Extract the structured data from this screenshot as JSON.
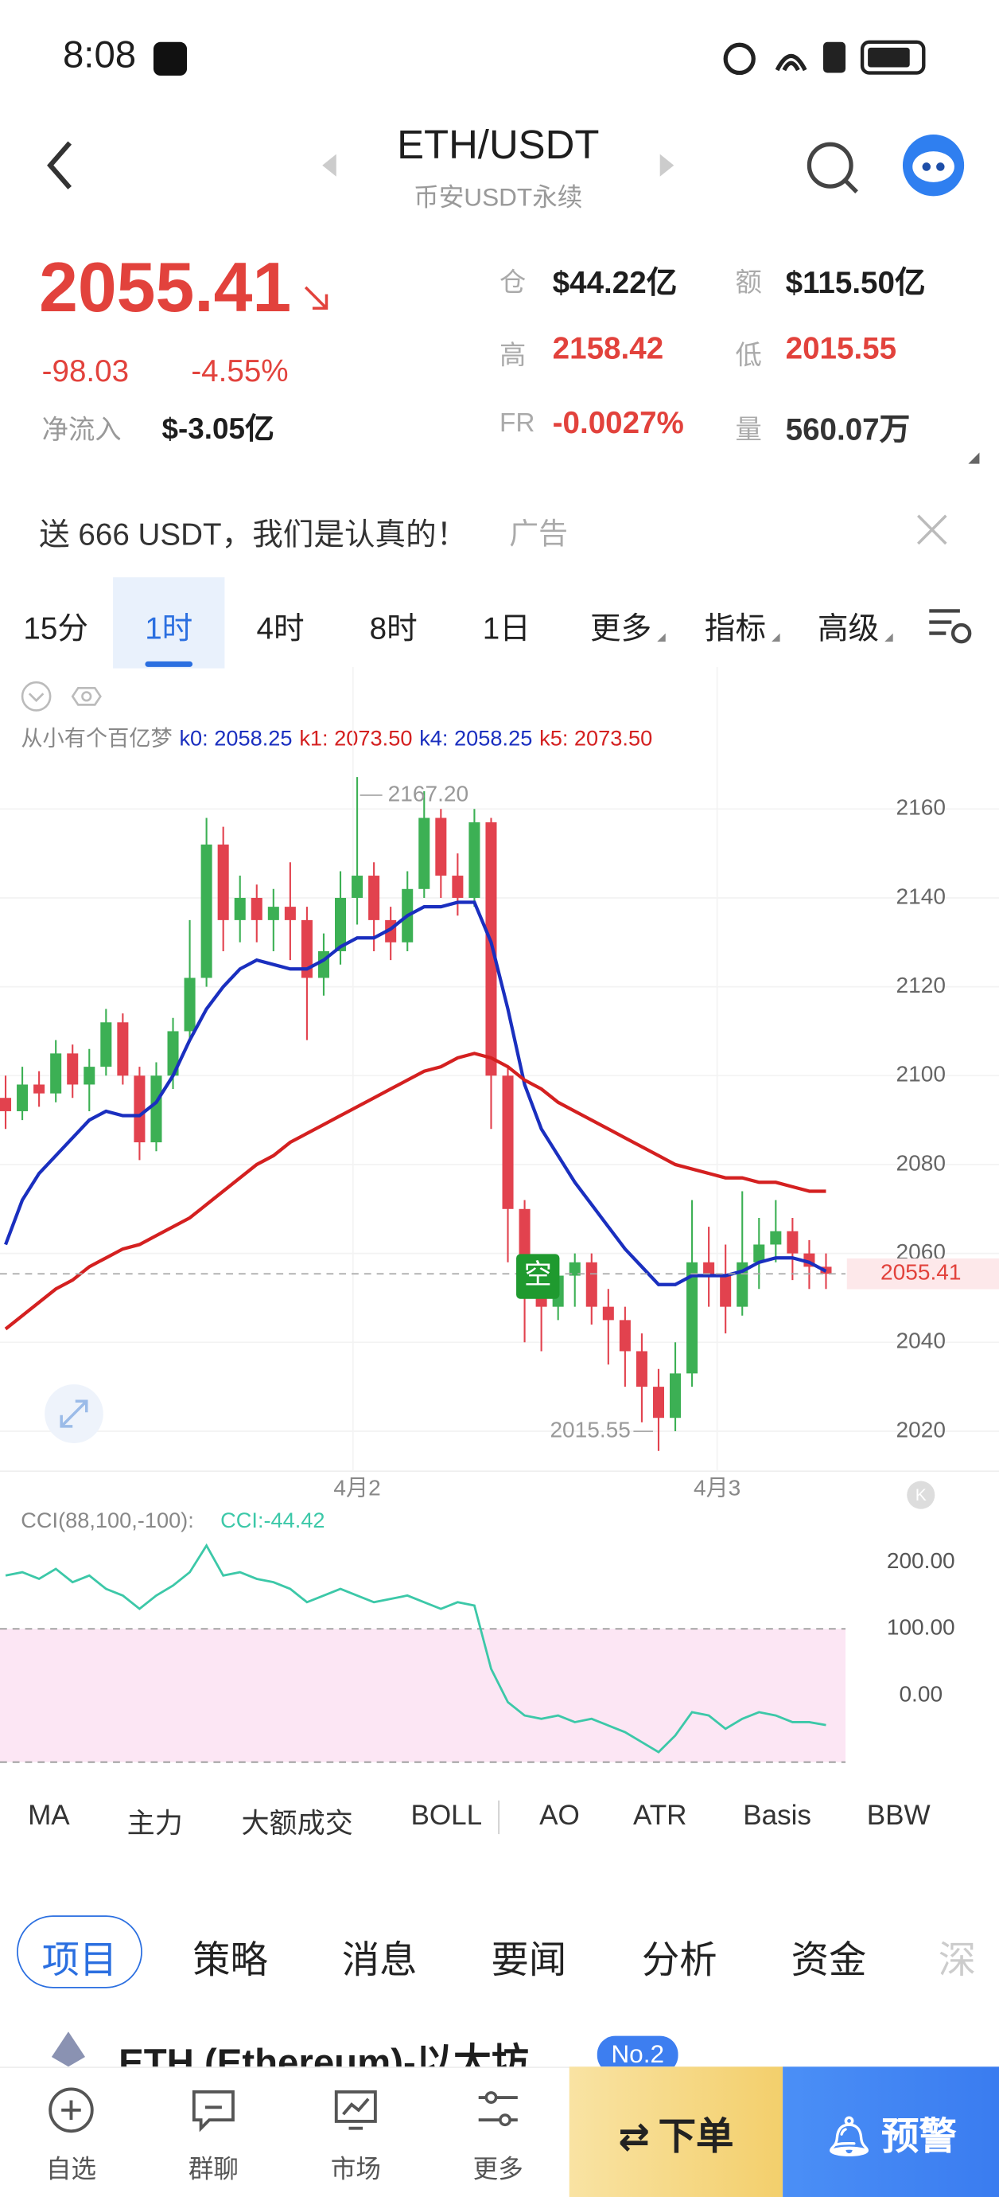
{
  "status": {
    "time": "8:08"
  },
  "header": {
    "title": "ETH/USDT",
    "subtitle": "币安USDT永续"
  },
  "ticker": {
    "price": "2055.41",
    "change": "-98.03",
    "change_pct": "-4.55%",
    "netflow_label": "净流入",
    "netflow": "$-3.05亿",
    "stats": [
      {
        "label": "仓",
        "value": "$44.22亿"
      },
      {
        "label": "额",
        "value": "$115.50亿"
      },
      {
        "label": "高",
        "value": "2158.42"
      },
      {
        "label": "低",
        "value": "2015.55"
      },
      {
        "label": "FR",
        "value": "-0.0027%"
      },
      {
        "label": "量",
        "value": "560.07万"
      }
    ]
  },
  "ad": {
    "text": "送 666 USDT，我们是认真的！",
    "tag": "广告"
  },
  "timeframes": [
    "15分",
    "1时",
    "4时",
    "8时",
    "1日",
    "更多",
    "指标",
    "高级"
  ],
  "indicator": {
    "name": "从小有个百亿梦",
    "legend": [
      {
        "text": "k0: 2058.25",
        "color": "#1a2fbf"
      },
      {
        "text": "k1: 2073.50",
        "color": "#d42020"
      },
      {
        "text": "k4: 2058.25",
        "color": "#1a2fbf"
      },
      {
        "text": "k5: 2073.50",
        "color": "#d42020"
      }
    ]
  },
  "chart_data": [
    {
      "type": "candlestick",
      "up_color": "#3cb054",
      "down_color": "#e2424e",
      "ylim": [
        2011,
        2168
      ],
      "yticks": [
        2020,
        2040,
        2060,
        2080,
        2100,
        2120,
        2140,
        2160
      ],
      "grid": true,
      "x_labels": [
        "4月2",
        "4月3"
      ],
      "high_label": "2167.20",
      "candles": [
        [
          2095,
          2100,
          2088,
          2092
        ],
        [
          2092,
          2102,
          2090,
          2098
        ],
        [
          2098,
          2101,
          2093,
          2096
        ],
        [
          2096,
          2108,
          2094,
          2105
        ],
        [
          2105,
          2107,
          2095,
          2098
        ],
        [
          2098,
          2106,
          2092,
          2102
        ],
        [
          2102,
          2115,
          2100,
          2112
        ],
        [
          2112,
          2114,
          2098,
          2100
        ],
        [
          2100,
          2102,
          2081,
          2085
        ],
        [
          2085,
          2103,
          2083,
          2100
        ],
        [
          2100,
          2113,
          2097,
          2110
        ],
        [
          2110,
          2135,
          2108,
          2122
        ],
        [
          2122,
          2158,
          2120,
          2152
        ],
        [
          2152,
          2156,
          2128,
          2135
        ],
        [
          2135,
          2145,
          2130,
          2140
        ],
        [
          2140,
          2143,
          2130,
          2135
        ],
        [
          2135,
          2142,
          2128,
          2138
        ],
        [
          2138,
          2148,
          2126,
          2135
        ],
        [
          2135,
          2138,
          2108,
          2122
        ],
        [
          2122,
          2132,
          2118,
          2128
        ],
        [
          2128,
          2146,
          2125,
          2140
        ],
        [
          2140,
          2167.2,
          2134,
          2145
        ],
        [
          2145,
          2148,
          2128,
          2135
        ],
        [
          2135,
          2138,
          2126,
          2130
        ],
        [
          2130,
          2146,
          2128,
          2142
        ],
        [
          2142,
          2164,
          2140,
          2158
        ],
        [
          2158,
          2160,
          2140,
          2145
        ],
        [
          2145,
          2150,
          2136,
          2140
        ],
        [
          2140,
          2160,
          2138,
          2157
        ],
        [
          2157,
          2158,
          2088,
          2100
        ],
        [
          2100,
          2102,
          2058,
          2070
        ],
        [
          2070,
          2072,
          2040,
          2055
        ],
        [
          2055,
          2058,
          2038,
          2048
        ],
        [
          2048,
          2058,
          2045,
          2055
        ],
        [
          2055,
          2060,
          2048,
          2058
        ],
        [
          2058,
          2060,
          2044,
          2048
        ],
        [
          2048,
          2052,
          2035,
          2045
        ],
        [
          2045,
          2048,
          2030,
          2038
        ],
        [
          2038,
          2042,
          2022,
          2030
        ],
        [
          2030,
          2034,
          2015.55,
          2023
        ],
        [
          2023,
          2040,
          2020,
          2033
        ],
        [
          2033,
          2072,
          2030,
          2058
        ],
        [
          2058,
          2066,
          2048,
          2055
        ],
        [
          2055,
          2062,
          2042,
          2048
        ],
        [
          2048,
          2074,
          2046,
          2058
        ],
        [
          2058,
          2068,
          2052,
          2062
        ],
        [
          2062,
          2072,
          2058,
          2065
        ],
        [
          2065,
          2068,
          2054,
          2060
        ],
        [
          2060,
          2063,
          2052,
          2057
        ],
        [
          2057,
          2060,
          2052,
          2055.41
        ]
      ],
      "lines": [
        {
          "color": "#1a2fbf",
          "values": [
            2062,
            2072,
            2078,
            2082,
            2086,
            2090,
            2092,
            2091,
            2091,
            2094,
            2100,
            2108,
            2115,
            2120,
            2124,
            2126,
            2125,
            2124,
            2124,
            2126,
            2129,
            2131,
            2131,
            2133,
            2136,
            2138,
            2138,
            2139,
            2139,
            2130,
            2115,
            2098,
            2088,
            2082,
            2076,
            2071,
            2066,
            2061,
            2057,
            2053,
            2053,
            2055,
            2055,
            2055,
            2056,
            2058,
            2059,
            2059,
            2058,
            2056
          ]
        },
        {
          "color": "#d42020",
          "values": [
            2043,
            2046,
            2049,
            2052,
            2054,
            2057,
            2059,
            2061,
            2062,
            2064,
            2066,
            2068,
            2071,
            2074,
            2077,
            2080,
            2082,
            2085,
            2087,
            2089,
            2091,
            2093,
            2095,
            2097,
            2099,
            2101,
            2102,
            2104,
            2105,
            2104,
            2102,
            2099,
            2097,
            2094,
            2092,
            2090,
            2088,
            2086,
            2084,
            2082,
            2080,
            2079,
            2078,
            2077,
            2077,
            2076,
            2076,
            2075,
            2074,
            2074
          ]
        }
      ]
    },
    {
      "type": "line",
      "title": "CCI(88,100,-100):",
      "value_label": "CCI:-44.42",
      "color": "#3cc8a8",
      "band": [
        -100,
        100
      ],
      "band_color": "#fce6f4",
      "ylim": [
        -126,
        284
      ],
      "yticks": [
        {
          "value": 200,
          "label": "200.00"
        },
        {
          "value": 100,
          "label": "100.00"
        },
        {
          "value": 0,
          "label": "0.00"
        }
      ],
      "values": [
        180,
        185,
        175,
        190,
        170,
        180,
        160,
        150,
        130,
        150,
        165,
        185,
        225,
        180,
        185,
        175,
        170,
        160,
        140,
        150,
        160,
        150,
        140,
        145,
        150,
        140,
        130,
        140,
        135,
        40,
        -10,
        -30,
        -35,
        -30,
        -40,
        -35,
        -45,
        -55,
        -70,
        -85,
        -60,
        -25,
        -30,
        -50,
        -35,
        -25,
        -30,
        -40,
        -40,
        -44.42
      ]
    }
  ],
  "indicator_tabs": [
    "MA",
    "主力",
    "大额成交",
    "BOLL",
    "AO",
    "ATR",
    "Basis",
    "BBW"
  ],
  "news_tabs": [
    "项目",
    "策略",
    "消息",
    "要闻",
    "分析",
    "资金",
    "深"
  ],
  "coin": {
    "name": "ETH (Ethereum)-以太坊",
    "rank": "No.2"
  },
  "nav": [
    "自选",
    "群聊",
    "市场",
    "更多"
  ],
  "actions": {
    "order": "下单",
    "alert": "预警"
  }
}
